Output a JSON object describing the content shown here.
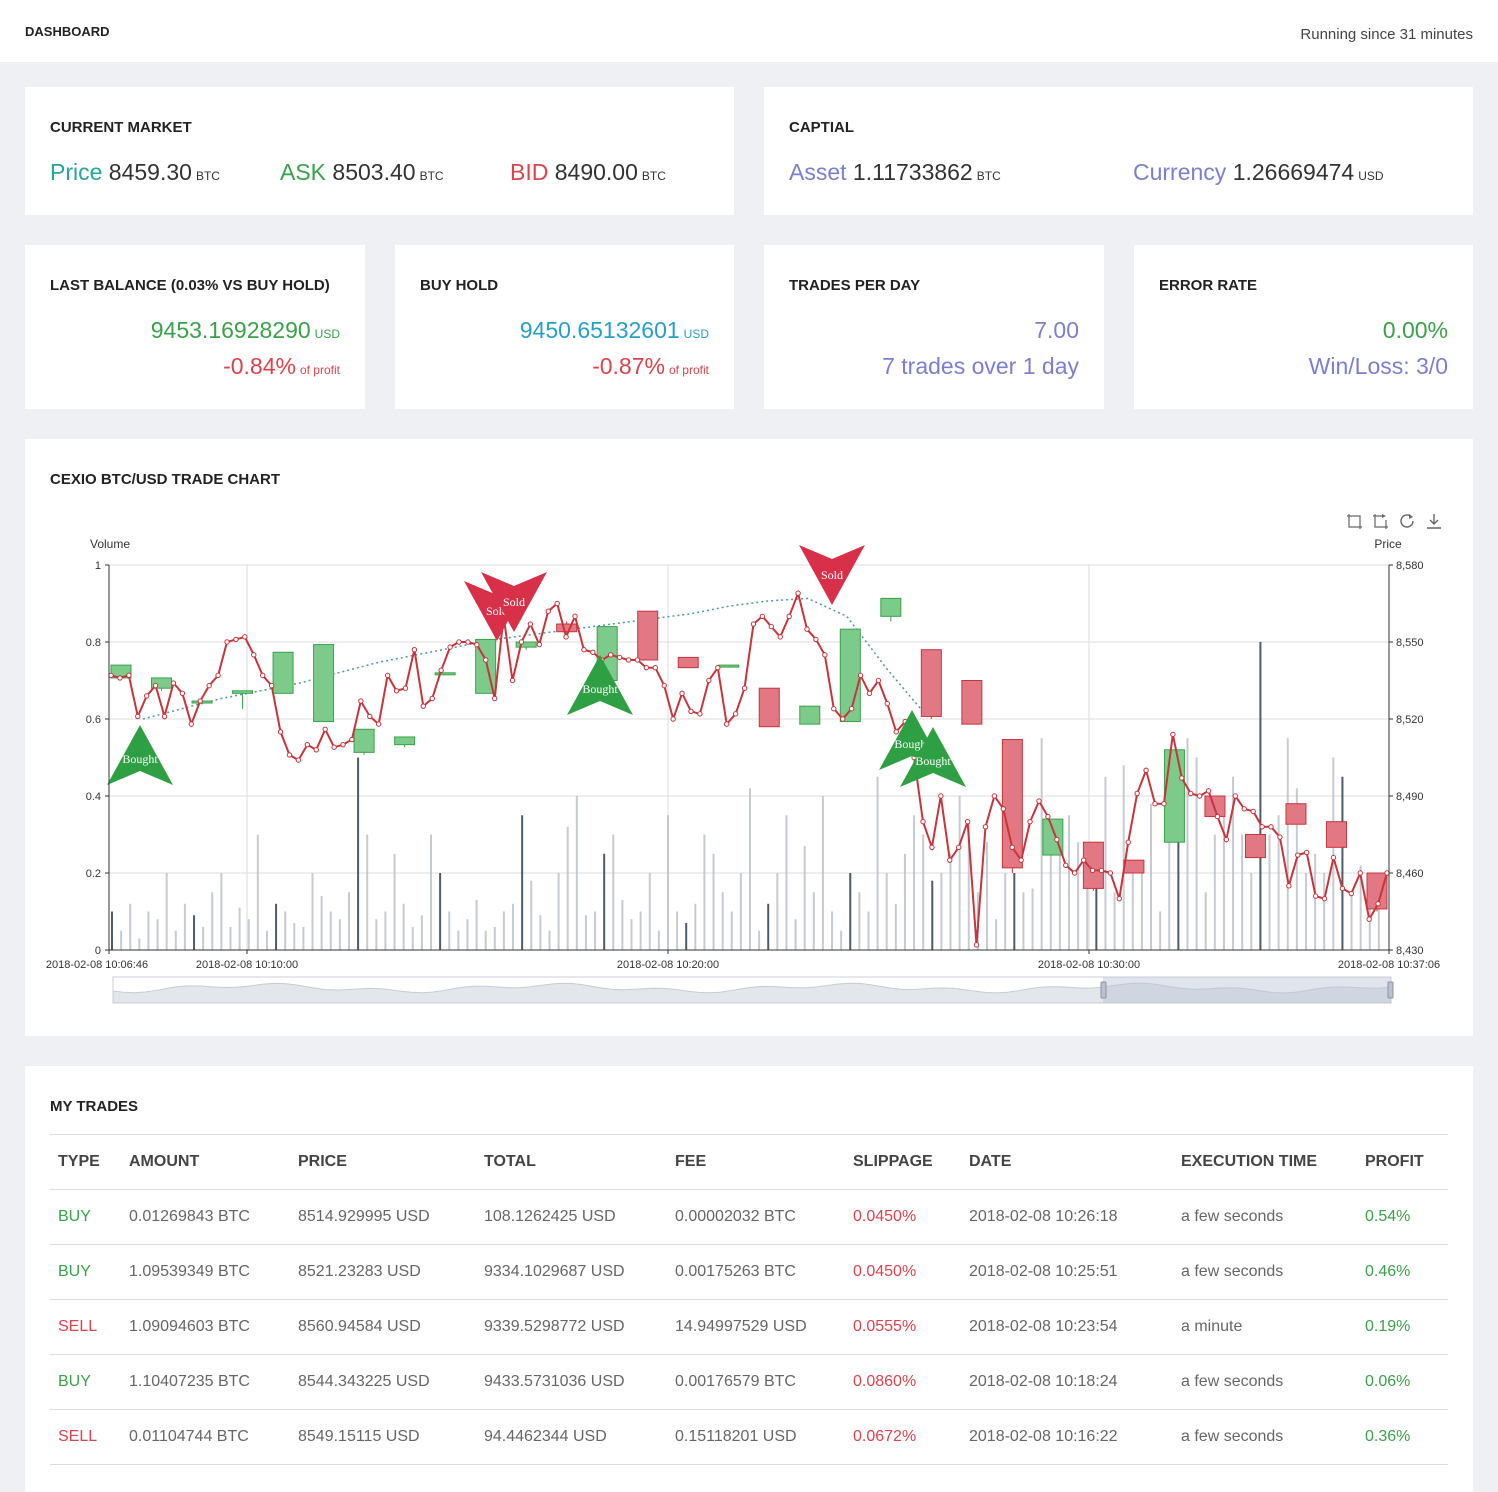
{
  "header": {
    "title": "DASHBOARD",
    "running": "Running since 31 minutes"
  },
  "market": {
    "title": "CURRENT MARKET",
    "price_label": "Price",
    "price": "8459.30",
    "price_unit": "BTC",
    "ask_label": "ASK",
    "ask": "8503.40",
    "ask_unit": "BTC",
    "bid_label": "BID",
    "bid": "8490.00",
    "bid_unit": "BTC"
  },
  "capital": {
    "title": "CAPTIAL",
    "asset_label": "Asset",
    "asset": "1.11733862",
    "asset_unit": "BTC",
    "currency_label": "Currency",
    "currency": "1.26669474",
    "currency_unit": "USD"
  },
  "last_balance": {
    "title": "LAST BALANCE (0.03% VS BUY HOLD)",
    "value": "9453.16928290",
    "unit": "USD",
    "profit": "-0.84%",
    "profit_suffix": "of profit"
  },
  "buy_hold": {
    "title": "BUY HOLD",
    "value": "9450.65132601",
    "unit": "USD",
    "profit": "-0.87%",
    "profit_suffix": "of profit"
  },
  "trades_per_day": {
    "title": "TRADES PER DAY",
    "value": "7.00",
    "detail": "7 trades over 1 day"
  },
  "error_rate": {
    "title": "ERROR RATE",
    "value": "0.00%",
    "detail": "Win/Loss: 3/0"
  },
  "chart": {
    "title": "CEXIO BTC/USD TRADE CHART",
    "colors": {
      "up": "#7ccb8a",
      "down": "#e27883",
      "line": "#c9343c",
      "grid": "#ddd"
    }
  },
  "chart_data": {
    "type": "line",
    "y_left_label": "Volume",
    "y_right_label": "Price",
    "y_left_ticks": [
      "0",
      "0.2",
      "0.4",
      "0.6",
      "0.8",
      "1"
    ],
    "y_right_ticks": [
      "8,430",
      "8,460",
      "8,490",
      "8,520",
      "8,550",
      "8,580"
    ],
    "ylim_price": [
      8430,
      8580
    ],
    "ylim_volume": [
      0,
      1
    ],
    "x_ticks": [
      "2018-02-08 10:06:46",
      "2018-02-08 10:10:00",
      "2018-02-08 10:20:00",
      "2018-02-08 10:30:00",
      "2018-02-08 10:37:06"
    ],
    "price_series": {
      "name": "Price",
      "values": [
        8537,
        8536,
        8537,
        8521,
        8529,
        8533,
        8521,
        8534,
        8530,
        8518,
        8527,
        8533,
        8537,
        8550,
        8551,
        8552,
        8545,
        8537,
        8533,
        8515,
        8506,
        8504,
        8510,
        8508,
        8516,
        8509,
        8510,
        8512,
        8527,
        8521,
        8518,
        8537,
        8531,
        8532,
        8547,
        8525,
        8528,
        8539,
        8548,
        8550,
        8550,
        8549,
        8543,
        8528,
        8560,
        8535,
        8550,
        8557,
        8549,
        8562,
        8565,
        8552,
        8560,
        8547,
        8546,
        8543,
        8545,
        8544,
        8543,
        8543,
        8540,
        8540,
        8533,
        8520,
        8530,
        8523,
        8522,
        8535,
        8540,
        8518,
        8522,
        8532,
        8557,
        8560,
        8556,
        8552,
        8560,
        8569,
        8555,
        8551,
        8545,
        8524,
        8520,
        8524,
        8537,
        8530,
        8535,
        8526,
        8515,
        8519,
        8505,
        8480,
        8470,
        8490,
        8465,
        8470,
        8480,
        8432,
        8478,
        8490,
        8485,
        8470,
        8465,
        8480,
        8488,
        8482,
        8473,
        8463,
        8460,
        8465,
        8461,
        8461,
        8460,
        8450,
        8472,
        8491,
        8500,
        8487,
        8487,
        8514,
        8497,
        8491,
        8490,
        8492,
        8482,
        8473,
        8490,
        8485,
        8484,
        8478,
        8478,
        8474,
        8455,
        8467,
        8468,
        8451,
        8450,
        8466,
        8454,
        8452,
        8460,
        8442,
        8448,
        8460
      ]
    },
    "moving_average": {
      "values": [
        8520,
        8524,
        8528,
        8531,
        8534,
        8538,
        8542,
        8545,
        8548,
        8551,
        8553,
        8555,
        8557,
        8559,
        8561,
        8564,
        8566,
        8567,
        8560,
        8540,
        8522
      ]
    },
    "volume_series": {
      "name": "Volume",
      "values": [
        0.1,
        0.05,
        0.12,
        0.03,
        0.1,
        0.08,
        0.2,
        0.05,
        0.12,
        0.09,
        0.06,
        0.15,
        0.2,
        0.06,
        0.11,
        0.08,
        0.3,
        0.05,
        0.12,
        0.1,
        0.07,
        0.06,
        0.2,
        0.14,
        0.1,
        0.08,
        0.15,
        0.5,
        0.3,
        0.08,
        0.1,
        0.25,
        0.12,
        0.06,
        0.09,
        0.3,
        0.2,
        0.1,
        0.05,
        0.08,
        0.13,
        0.05,
        0.06,
        0.1,
        0.12,
        0.35,
        0.18,
        0.09,
        0.05,
        0.2,
        0.32,
        0.4,
        0.09,
        0.1,
        0.25,
        0.3,
        0.13,
        0.08,
        0.1,
        0.2,
        0.05,
        0.35,
        0.1,
        0.07,
        0.12,
        0.3,
        0.25,
        0.15,
        0.1,
        0.2,
        0.42,
        0.05,
        0.12,
        0.2,
        0.35,
        0.08,
        0.27,
        0.15,
        0.4,
        0.1,
        0.05,
        0.2,
        0.15,
        0.1,
        0.45,
        0.2,
        0.12,
        0.25,
        0.35,
        0.3,
        0.18,
        0.2,
        0.25,
        0.4,
        0.33,
        0.15,
        0.28,
        0.08,
        0.2,
        0.2,
        0.15,
        0.16,
        0.55,
        0.25,
        0.3,
        0.35,
        0.28,
        0.2,
        0.2,
        0.45,
        0.15,
        0.48,
        0.2,
        0.22,
        0.38,
        0.1,
        0.4,
        0.32,
        0.55,
        0.5,
        0.15,
        0.3,
        0.35,
        0.45,
        0.3,
        0.2,
        0.8,
        0.3,
        0.35,
        0.55,
        0.42,
        0.2,
        0.25,
        0.2,
        0.5,
        0.45,
        0.15,
        0.22,
        0.14,
        0.2
      ]
    },
    "candles": [
      [
        8536,
        8541,
        8535,
        8541
      ],
      [
        8532,
        8536,
        8531,
        8536
      ],
      [
        8527,
        8527,
        8526,
        8527
      ],
      [
        8530,
        8531,
        8524,
        8531
      ],
      [
        8530,
        8546,
        8530,
        8546
      ],
      [
        8519,
        8549,
        8519,
        8549
      ],
      [
        8507,
        8516,
        8506,
        8516
      ],
      [
        8510,
        8513,
        8509,
        8513
      ],
      [
        8538,
        8538,
        8537,
        8538
      ],
      [
        8530,
        8551,
        8530,
        8551
      ],
      [
        8548,
        8550,
        8547,
        8550
      ],
      [
        8557,
        8554,
        8553,
        8558
      ],
      [
        8535,
        8556,
        8535,
        8556
      ],
      [
        8562,
        8543,
        8543,
        8562
      ],
      [
        8544,
        8540,
        8540,
        8544
      ],
      [
        8541,
        8541,
        8540,
        8541
      ],
      [
        8532,
        8517,
        8517,
        8532
      ],
      [
        8518,
        8525,
        8518,
        8525
      ],
      [
        8519,
        8555,
        8519,
        8555
      ],
      [
        8560,
        8567,
        8558,
        8567
      ],
      [
        8547,
        8521,
        8520,
        8547
      ],
      [
        8535,
        8518,
        8518,
        8535
      ],
      [
        8512,
        8462,
        8460,
        8512
      ],
      [
        8467,
        8481,
        8467,
        8481
      ],
      [
        8472,
        8454,
        8453,
        8472
      ],
      [
        8465,
        8460,
        8460,
        8465
      ],
      [
        8472,
        8508,
        8472,
        8508
      ],
      [
        8490,
        8482,
        8482,
        8490
      ],
      [
        8475,
        8466,
        8466,
        8475
      ],
      [
        8487,
        8479,
        8479,
        8487
      ],
      [
        8480,
        8470,
        8470,
        8480
      ],
      [
        8460,
        8446,
        8445,
        8460
      ]
    ],
    "markers": [
      {
        "label": "Bought",
        "side": "buy"
      },
      {
        "label": "Sold",
        "side": "sell"
      },
      {
        "label": "Sold",
        "side": "sell"
      },
      {
        "label": "Bought",
        "side": "buy"
      },
      {
        "label": "Sold",
        "side": "sell"
      },
      {
        "label": "Bought",
        "side": "buy"
      },
      {
        "label": "Bought",
        "side": "buy"
      }
    ]
  },
  "trades": {
    "title": "MY TRADES",
    "columns": [
      "TYPE",
      "AMOUNT",
      "PRICE",
      "TOTAL",
      "FEE",
      "SLIPPAGE",
      "DATE",
      "EXECUTION TIME",
      "PROFIT"
    ],
    "rows": [
      {
        "type": "BUY",
        "amount": "0.01269843 BTC",
        "price": "8514.929995 USD",
        "total": "108.1262425 USD",
        "fee": "0.00002032 BTC",
        "slippage": "0.0450%",
        "date": "2018-02-08 10:26:18",
        "exec": "a few seconds",
        "profit": "0.54%"
      },
      {
        "type": "BUY",
        "amount": "1.09539349 BTC",
        "price": "8521.23283 USD",
        "total": "9334.1029687 USD",
        "fee": "0.00175263 BTC",
        "slippage": "0.0450%",
        "date": "2018-02-08 10:25:51",
        "exec": "a few seconds",
        "profit": "0.46%"
      },
      {
        "type": "SELL",
        "amount": "1.09094603 BTC",
        "price": "8560.94584 USD",
        "total": "9339.5298772 USD",
        "fee": "14.94997529 USD",
        "slippage": "0.0555%",
        "date": "2018-02-08 10:23:54",
        "exec": "a minute",
        "profit": "0.19%"
      },
      {
        "type": "BUY",
        "amount": "1.10407235 BTC",
        "price": "8544.343225 USD",
        "total": "9433.5731036 USD",
        "fee": "0.00176579 BTC",
        "slippage": "0.0860%",
        "date": "2018-02-08 10:18:24",
        "exec": "a few seconds",
        "profit": "0.06%"
      },
      {
        "type": "SELL",
        "amount": "0.01104744 BTC",
        "price": "8549.15115 USD",
        "total": "94.4462344 USD",
        "fee": "0.15118201 USD",
        "slippage": "0.0672%",
        "date": "2018-02-08 10:16:22",
        "exec": "a few seconds",
        "profit": "0.36%"
      }
    ]
  }
}
